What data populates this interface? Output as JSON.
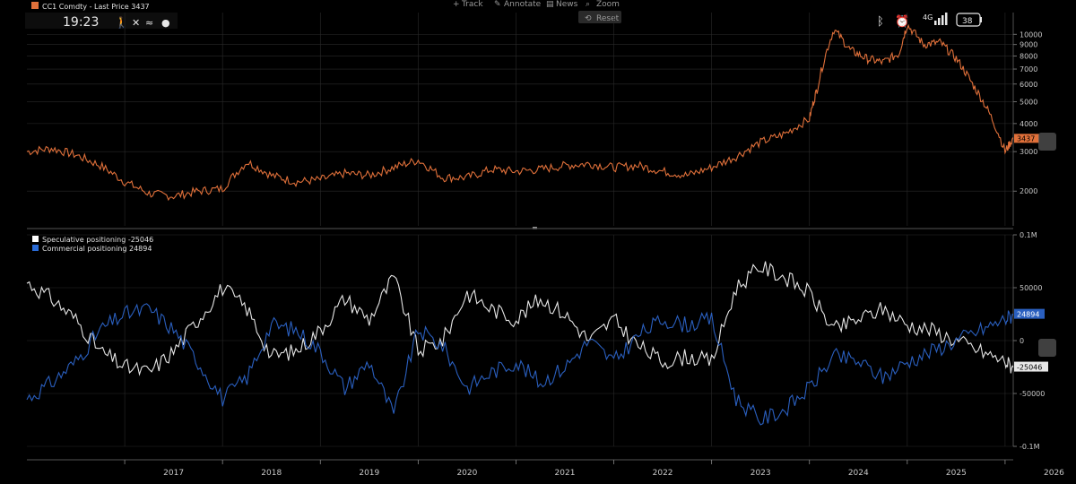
{
  "header": {
    "title": "CC1 Comdty - Last Price 3437",
    "time": "19:23",
    "title_color": "#e0703a"
  },
  "toolbar": {
    "items": [
      {
        "icon": "track-icon",
        "label": "Track"
      },
      {
        "icon": "annotate-icon",
        "label": "Annotate"
      },
      {
        "icon": "news-icon",
        "label": "News"
      },
      {
        "icon": "zoom-icon",
        "label": "Zoom"
      }
    ],
    "reset_label": "Reset"
  },
  "status_bar": {
    "network": "4G",
    "battery": "38"
  },
  "x_axis": {
    "ticks": [
      "2017",
      "2018",
      "2019",
      "2020",
      "2021",
      "2022",
      "2023",
      "2024",
      "2025",
      "2026"
    ]
  },
  "upper_panel": {
    "axis_ticks": [
      "10000",
      "9000",
      "8000",
      "7000",
      "6000",
      "5000",
      "4000",
      "3000",
      "2000"
    ],
    "last_value_tag": "3437"
  },
  "lower_panel": {
    "axis_ticks": [
      "0.1M",
      "50000",
      "0",
      "-50000",
      "-0.1M"
    ],
    "legend": [
      {
        "label": "Speculative positioning -25046",
        "color": "#ffffff"
      },
      {
        "label": "Commercial positioning 24894",
        "color": "#2a6bd6"
      }
    ],
    "tags": [
      "24894",
      "-25046"
    ]
  },
  "colors": {
    "price": "#e0703a",
    "speculative": "#e6e6e6",
    "commercial": "#2a5fbf",
    "grid": "#2a2a2a"
  },
  "chart_data": [
    {
      "type": "line",
      "title": "CC1 Comdty - Last Price 3437",
      "xlabel": "",
      "ylabel": "",
      "scale": "log",
      "ylim": [
        1400,
        12500
      ],
      "xlim": [
        "2016-01",
        "2026-02"
      ],
      "grid": true,
      "series": [
        {
          "name": "CC1 Comdty - Last Price",
          "x": [
            "2016-01",
            "2016-04",
            "2016-07",
            "2016-10",
            "2017-01",
            "2017-04",
            "2017-07",
            "2017-10",
            "2018-01",
            "2018-04",
            "2018-07",
            "2018-10",
            "2019-01",
            "2019-04",
            "2019-07",
            "2019-10",
            "2020-01",
            "2020-04",
            "2020-07",
            "2020-10",
            "2021-01",
            "2021-04",
            "2021-07",
            "2021-10",
            "2022-01",
            "2022-04",
            "2022-07",
            "2022-10",
            "2023-01",
            "2023-04",
            "2023-07",
            "2023-10",
            "2024-01",
            "2024-02",
            "2024-04",
            "2024-06",
            "2024-08",
            "2024-10",
            "2024-12",
            "2025-01",
            "2025-03",
            "2025-05",
            "2025-07",
            "2025-09",
            "2025-11",
            "2026-01",
            "2026-02"
          ],
          "y": [
            3000,
            3100,
            2900,
            2600,
            2200,
            1950,
            1900,
            2000,
            2050,
            2700,
            2350,
            2200,
            2250,
            2400,
            2350,
            2550,
            2750,
            2300,
            2300,
            2500,
            2450,
            2500,
            2600,
            2650,
            2550,
            2600,
            2450,
            2350,
            2550,
            2850,
            3300,
            3600,
            4200,
            5800,
            10500,
            8500,
            7800,
            7500,
            8200,
            11000,
            9000,
            9200,
            7800,
            6000,
            4500,
            3000,
            3437
          ]
        }
      ]
    },
    {
      "type": "line",
      "title": "",
      "xlabel": "",
      "ylabel": "",
      "ylim": [
        -100000,
        100000
      ],
      "xlim": [
        "2016-01",
        "2026-02"
      ],
      "grid": true,
      "legend": "top-left",
      "series": [
        {
          "name": "Speculative positioning",
          "last": -25046,
          "x": [
            "2016-01",
            "2016-04",
            "2016-07",
            "2016-10",
            "2017-01",
            "2017-04",
            "2017-07",
            "2017-10",
            "2018-01",
            "2018-04",
            "2018-07",
            "2018-10",
            "2019-01",
            "2019-04",
            "2019-07",
            "2019-10",
            "2020-01",
            "2020-04",
            "2020-07",
            "2020-10",
            "2021-01",
            "2021-04",
            "2021-07",
            "2021-10",
            "2022-01",
            "2022-04",
            "2022-07",
            "2022-10",
            "2023-01",
            "2023-04",
            "2023-07",
            "2023-10",
            "2024-01",
            "2024-04",
            "2024-07",
            "2024-10",
            "2025-01",
            "2025-04",
            "2025-07",
            "2025-10",
            "2026-01",
            "2026-02"
          ],
          "y": [
            55000,
            40000,
            20000,
            -10000,
            -25000,
            -30000,
            -10000,
            20000,
            50000,
            30000,
            -15000,
            -10000,
            10000,
            40000,
            20000,
            60000,
            -10000,
            0,
            45000,
            30000,
            20000,
            40000,
            25000,
            0,
            20000,
            -5000,
            -20000,
            -15000,
            -20000,
            50000,
            70000,
            60000,
            45000,
            10000,
            20000,
            30000,
            15000,
            10000,
            0,
            -10000,
            -20000,
            -25046
          ]
        },
        {
          "name": "Commercial positioning",
          "last": 24894,
          "x": [
            "2016-01",
            "2016-04",
            "2016-07",
            "2016-10",
            "2017-01",
            "2017-04",
            "2017-07",
            "2017-10",
            "2018-01",
            "2018-04",
            "2018-07",
            "2018-10",
            "2019-01",
            "2019-04",
            "2019-07",
            "2019-10",
            "2020-01",
            "2020-04",
            "2020-07",
            "2020-10",
            "2021-01",
            "2021-04",
            "2021-07",
            "2021-10",
            "2022-01",
            "2022-04",
            "2022-07",
            "2022-10",
            "2023-01",
            "2023-04",
            "2023-07",
            "2023-10",
            "2024-01",
            "2024-04",
            "2024-07",
            "2024-10",
            "2025-01",
            "2025-04",
            "2025-07",
            "2025-10",
            "2026-01",
            "2026-02"
          ],
          "y": [
            -55000,
            -40000,
            -20000,
            10000,
            25000,
            30000,
            10000,
            -20000,
            -55000,
            -35000,
            15000,
            10000,
            -10000,
            -45000,
            -20000,
            -70000,
            10000,
            -5000,
            -45000,
            -30000,
            -20000,
            -40000,
            -25000,
            0,
            -20000,
            5000,
            20000,
            15000,
            20000,
            -55000,
            -75000,
            -65000,
            -45000,
            -15000,
            -20000,
            -35000,
            -20000,
            -10000,
            0,
            10000,
            20000,
            24894
          ]
        }
      ]
    }
  ]
}
